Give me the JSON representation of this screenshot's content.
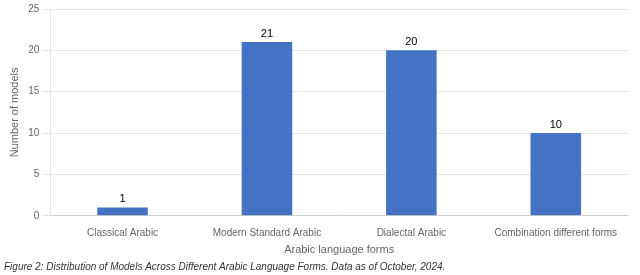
{
  "chart_data": {
    "type": "bar",
    "categories": [
      "Classical Arabic",
      "Modern Standard Arabic",
      "Dialectal Arabic",
      "Combination different forms"
    ],
    "values": [
      1,
      21,
      20,
      10
    ],
    "color": "#4472C4",
    "xlabel": "Arabic language forms",
    "ylabel": "Number of models",
    "caption": "Figure 2: Distribution of Models Across Different Arabic Language Forms. Data as of October, 2024.",
    "ylim": [
      0,
      25
    ],
    "yticks": [
      0,
      5,
      10,
      15,
      20,
      25
    ],
    "grid": "y",
    "data_labels": true
  }
}
